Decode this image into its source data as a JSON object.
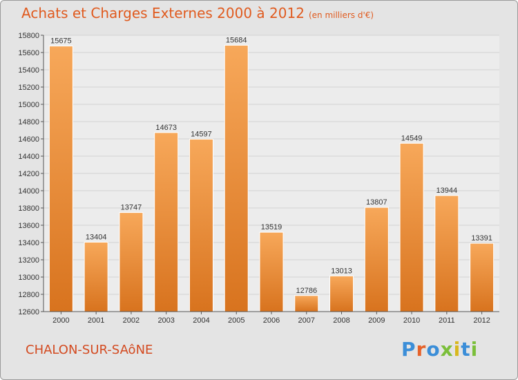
{
  "header": {
    "title": "Achats et Charges Externes 2000 à 2012",
    "unit_note": "(en milliers d'€)"
  },
  "footer": {
    "city": "CHALON-SUR-SAôNE",
    "logo_text": "Proxiti"
  },
  "colors": {
    "title": "#e05a1e",
    "bar_top": "#f7a85a",
    "bar_bottom": "#d8731e",
    "background": "#e4e4e4",
    "plot_background": "#ececec",
    "logo": [
      "#3b8ed8",
      "#e6622a",
      "#3b8ed8",
      "#7bbf3a",
      "#d8b81e",
      "#3b8ed8",
      "#7bbf3a"
    ]
  },
  "chart_data": {
    "type": "bar",
    "title": "Achats et Charges Externes 2000 à 2012",
    "subtitle": "(en milliers d'€)",
    "xlabel": "",
    "ylabel": "",
    "categories": [
      "2000",
      "2001",
      "2002",
      "2003",
      "2004",
      "2005",
      "2006",
      "2007",
      "2008",
      "2009",
      "2010",
      "2011",
      "2012"
    ],
    "values": [
      15675,
      13404,
      13747,
      14673,
      14597,
      15684,
      13519,
      12786,
      13013,
      13807,
      14549,
      13944,
      13391
    ],
    "ylim": [
      12600,
      15800
    ],
    "yticks": [
      12600,
      12800,
      13000,
      13200,
      13400,
      13600,
      13800,
      14000,
      14200,
      14400,
      14600,
      14800,
      15000,
      15200,
      15400,
      15600,
      15800
    ],
    "grid": true,
    "legend": "none"
  }
}
